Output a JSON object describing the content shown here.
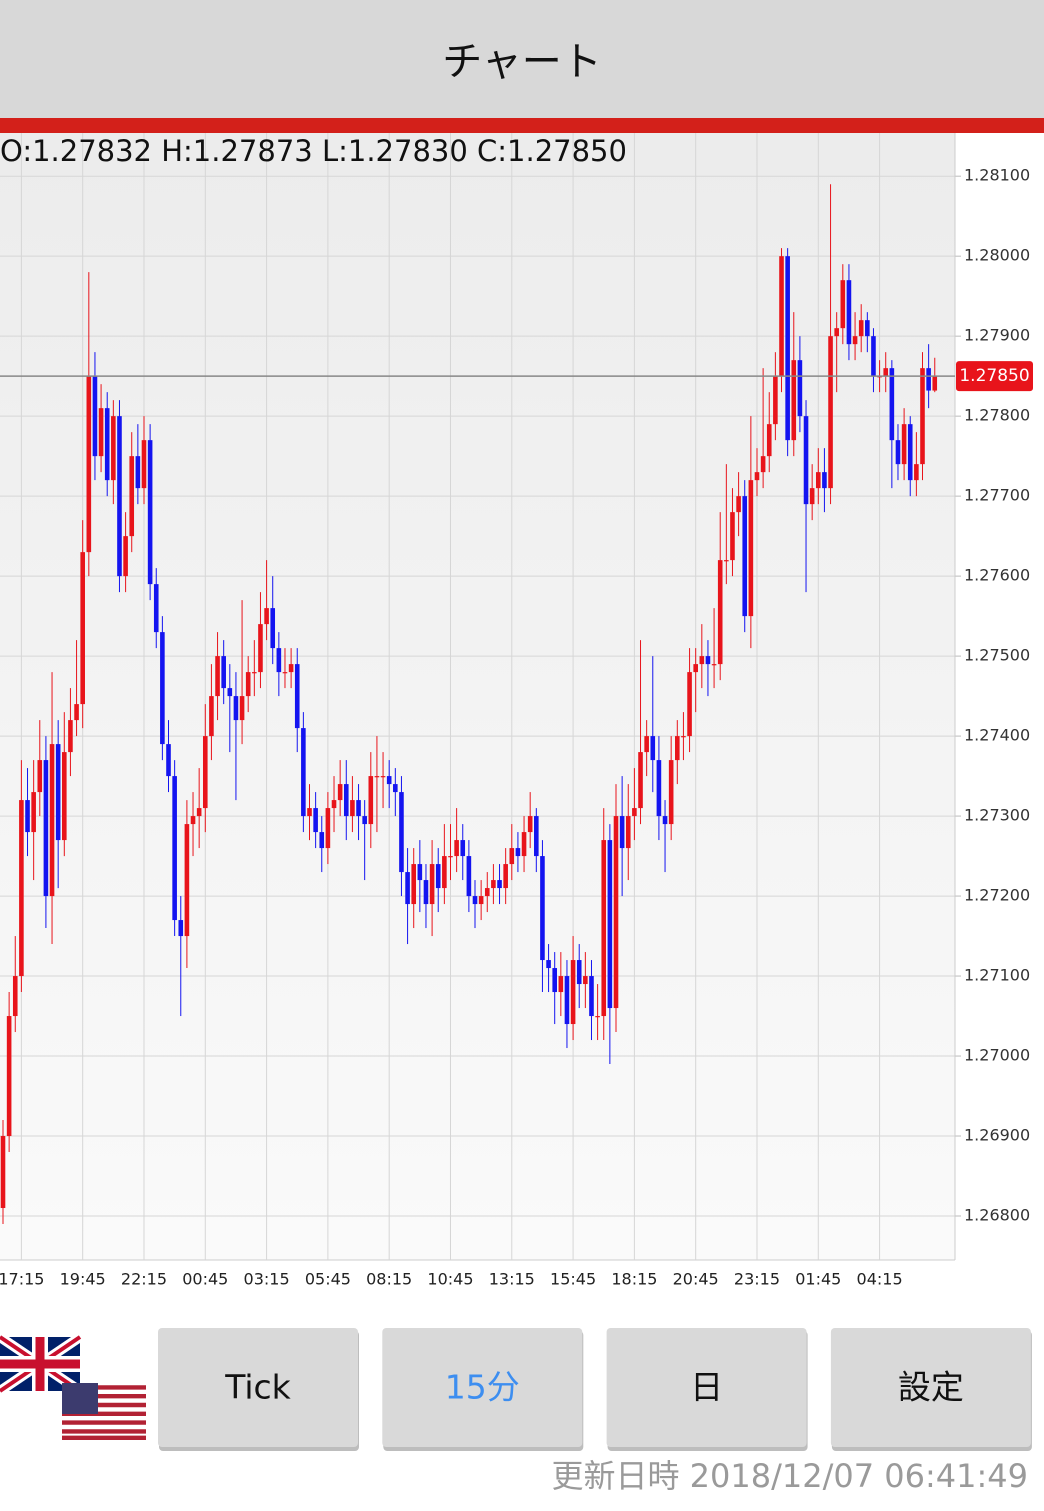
{
  "header": {
    "title": "チャート"
  },
  "chart_data": {
    "type": "candlestick",
    "ohlc_text": "O:1.27832 H:1.27873 L:1.27830 C:1.27850",
    "categories": [
      null,
      null,
      null,
      "17:15",
      null,
      null,
      null,
      null,
      null,
      null,
      null,
      null,
      null,
      "19:45",
      null,
      null,
      null,
      null,
      null,
      null,
      null,
      null,
      null,
      "22:15",
      null,
      null,
      null,
      null,
      null,
      null,
      null,
      null,
      null,
      "00:45",
      null,
      null,
      null,
      null,
      null,
      null,
      null,
      null,
      null,
      "03:15",
      null,
      null,
      null,
      null,
      null,
      null,
      null,
      null,
      null,
      "05:45",
      null,
      null,
      null,
      null,
      null,
      null,
      null,
      null,
      null,
      "08:15",
      null,
      null,
      null,
      null,
      null,
      null,
      null,
      null,
      null,
      "10:45",
      null,
      null,
      null,
      null,
      null,
      null,
      null,
      null,
      null,
      "13:15",
      null,
      null,
      null,
      null,
      null,
      null,
      null,
      null,
      null,
      "15:45",
      null,
      null,
      null,
      null,
      null,
      null,
      null,
      null,
      null,
      "18:15",
      null,
      null,
      null,
      null,
      null,
      null,
      null,
      null,
      null,
      "20:45",
      null,
      null,
      null,
      null,
      null,
      null,
      null,
      null,
      null,
      "23:15",
      null,
      null,
      null,
      null,
      null,
      null,
      null,
      null,
      null,
      "01:45",
      null,
      null,
      null,
      null,
      null,
      null,
      null,
      null,
      null,
      "04:15",
      null,
      null,
      null,
      null,
      null,
      null,
      null,
      null,
      null
    ],
    "open": [
      1.2681,
      1.269,
      1.2705,
      1.271,
      1.2732,
      1.2728,
      1.2733,
      1.2737,
      1.272,
      1.2739,
      1.2727,
      1.2738,
      1.2742,
      1.2744,
      1.2763,
      1.2785,
      1.2775,
      1.2781,
      1.2772,
      1.278,
      1.276,
      1.2765,
      1.2775,
      1.2771,
      1.2777,
      1.2759,
      1.2753,
      1.2739,
      1.2735,
      1.2717,
      1.2715,
      1.2729,
      1.273,
      1.2731,
      1.274,
      1.2745,
      1.275,
      1.2746,
      1.2745,
      1.2742,
      1.2745,
      1.2748,
      1.2748,
      1.2754,
      1.2756,
      1.2751,
      1.2748,
      1.2748,
      1.2749,
      1.2741,
      1.273,
      1.2731,
      1.2728,
      1.2726,
      1.2731,
      1.2732,
      1.2734,
      1.273,
      1.2732,
      1.273,
      1.2729,
      1.2735,
      1.2735,
      1.2735,
      1.2734,
      1.2733,
      1.2723,
      1.2719,
      1.2724,
      1.2722,
      1.2719,
      1.2724,
      1.2721,
      1.2725,
      1.2725,
      1.2727,
      1.2725,
      1.272,
      1.2719,
      1.272,
      1.2721,
      1.2722,
      1.2721,
      1.2724,
      1.2726,
      1.2725,
      1.2728,
      1.273,
      1.2725,
      1.2712,
      1.2711,
      1.2708,
      1.271,
      1.2704,
      1.2712,
      1.2709,
      1.271,
      1.2705,
      1.2705,
      1.2727,
      1.2706,
      1.273,
      1.2726,
      1.273,
      1.2731,
      1.2738,
      1.274,
      1.2737,
      1.273,
      1.2729,
      1.2737,
      1.274,
      1.274,
      1.2748,
      1.2749,
      1.275,
      1.2749,
      1.2749,
      1.2762,
      1.2762,
      1.2768,
      1.277,
      1.2755,
      1.2772,
      1.2773,
      1.2775,
      1.2779,
      1.2785,
      1.28,
      1.2777,
      1.2787,
      1.278,
      1.2769,
      1.2771,
      1.2773,
      1.2771,
      1.279,
      1.2791,
      1.2797,
      1.2789,
      1.279,
      1.2792,
      1.279,
      1.2785,
      1.2785,
      1.2786,
      1.2777,
      1.2774,
      1.2779,
      1.2772,
      1.2774,
      1.2786,
      1.27832
    ],
    "high": [
      1.2692,
      1.2708,
      1.2715,
      1.2737,
      1.2736,
      1.2737,
      1.2742,
      1.274,
      1.2748,
      1.2742,
      1.2743,
      1.2746,
      1.2752,
      1.2767,
      1.2798,
      1.2788,
      1.2784,
      1.2783,
      1.2782,
      1.2782,
      1.2768,
      1.2778,
      1.2779,
      1.278,
      1.2779,
      1.2761,
      1.2755,
      1.2742,
      1.2737,
      1.272,
      1.2732,
      1.2733,
      1.2736,
      1.2744,
      1.2749,
      1.2753,
      1.2752,
      1.2749,
      1.2748,
      1.2757,
      1.275,
      1.2752,
      1.2758,
      1.2762,
      1.276,
      1.2753,
      1.2751,
      1.2751,
      1.2751,
      1.2743,
      1.2734,
      1.2733,
      1.273,
      1.2733,
      1.2735,
      1.2737,
      1.2737,
      1.2735,
      1.2734,
      1.2732,
      1.2738,
      1.274,
      1.2738,
      1.2737,
      1.2736,
      1.2735,
      1.2726,
      1.2726,
      1.2727,
      1.2724,
      1.2727,
      1.2726,
      1.2729,
      1.2729,
      1.2731,
      1.2729,
      1.2727,
      1.2722,
      1.2722,
      1.2723,
      1.2724,
      1.2724,
      1.2726,
      1.2729,
      1.2728,
      1.273,
      1.2733,
      1.2731,
      1.2727,
      1.2714,
      1.2713,
      1.2713,
      1.2712,
      1.2715,
      1.2714,
      1.2713,
      1.2712,
      1.2709,
      1.2731,
      1.2729,
      1.2734,
      1.2735,
      1.2734,
      1.2736,
      1.2752,
      1.2742,
      1.275,
      1.274,
      1.2732,
      1.274,
      1.2742,
      1.2743,
      1.2751,
      1.2751,
      1.2754,
      1.2752,
      1.2756,
      1.2768,
      1.2774,
      1.2771,
      1.2773,
      1.2772,
      1.278,
      1.2776,
      1.2786,
      1.2783,
      1.2788,
      1.2801,
      1.2801,
      1.2793,
      1.279,
      1.2782,
      1.2774,
      1.2776,
      1.2776,
      1.2809,
      1.2793,
      1.2799,
      1.2799,
      1.2793,
      1.2794,
      1.2793,
      1.2791,
      1.2787,
      1.2788,
      1.2787,
      1.2779,
      1.2781,
      1.278,
      1.2778,
      1.2788,
      1.2789,
      1.27873
    ],
    "low": [
      1.2679,
      1.2688,
      1.2703,
      1.2708,
      1.2725,
      1.2722,
      1.273,
      1.2716,
      1.2714,
      1.2721,
      1.2725,
      1.2735,
      1.274,
      1.2741,
      1.276,
      1.2772,
      1.2773,
      1.277,
      1.2769,
      1.2758,
      1.2758,
      1.2763,
      1.2769,
      1.2769,
      1.2757,
      1.2751,
      1.2737,
      1.2733,
      1.2715,
      1.2705,
      1.2711,
      1.2725,
      1.2726,
      1.2728,
      1.2737,
      1.2742,
      1.2744,
      1.2738,
      1.2732,
      1.2739,
      1.2743,
      1.2745,
      1.2746,
      1.2752,
      1.2749,
      1.2745,
      1.2746,
      1.2746,
      1.2738,
      1.2728,
      1.2727,
      1.2726,
      1.2723,
      1.2724,
      1.2728,
      1.273,
      1.2727,
      1.2728,
      1.2727,
      1.2722,
      1.2726,
      1.2728,
      1.2731,
      1.2731,
      1.273,
      1.272,
      1.2714,
      1.2716,
      1.2718,
      1.2716,
      1.2715,
      1.2718,
      1.2719,
      1.2722,
      1.2723,
      1.2722,
      1.2718,
      1.2716,
      1.2717,
      1.2718,
      1.2719,
      1.2719,
      1.2719,
      1.2722,
      1.2723,
      1.2723,
      1.2726,
      1.2723,
      1.2708,
      1.2708,
      1.2704,
      1.2705,
      1.2701,
      1.2702,
      1.2706,
      1.2706,
      1.2702,
      1.2702,
      1.2702,
      1.2699,
      1.2703,
      1.272,
      1.2722,
      1.2727,
      1.2729,
      1.2735,
      1.2733,
      1.2727,
      1.2723,
      1.2727,
      1.2734,
      1.2737,
      1.2738,
      1.2743,
      1.2746,
      1.2745,
      1.2746,
      1.2747,
      1.2759,
      1.276,
      1.2765,
      1.2753,
      1.2751,
      1.277,
      1.2771,
      1.2773,
      1.2777,
      1.2783,
      1.2775,
      1.2775,
      1.2778,
      1.2758,
      1.2767,
      1.2769,
      1.2768,
      1.2769,
      1.2783,
      1.2789,
      1.2787,
      1.2787,
      1.2788,
      1.2788,
      1.2783,
      1.2783,
      1.2783,
      1.2771,
      1.2772,
      1.2772,
      1.277,
      1.277,
      1.2772,
      1.2781,
      1.2783
    ],
    "close": [
      1.269,
      1.2705,
      1.271,
      1.2732,
      1.2728,
      1.2733,
      1.2737,
      1.272,
      1.2739,
      1.2727,
      1.2738,
      1.2742,
      1.2744,
      1.2763,
      1.2785,
      1.2775,
      1.2781,
      1.2772,
      1.278,
      1.276,
      1.2765,
      1.2775,
      1.2771,
      1.2777,
      1.2759,
      1.2753,
      1.2739,
      1.2735,
      1.2717,
      1.2715,
      1.2729,
      1.273,
      1.2731,
      1.274,
      1.2745,
      1.275,
      1.2746,
      1.2745,
      1.2742,
      1.2745,
      1.2748,
      1.2748,
      1.2754,
      1.2756,
      1.2751,
      1.2748,
      1.2748,
      1.2749,
      1.2741,
      1.273,
      1.2731,
      1.2728,
      1.2726,
      1.2731,
      1.2732,
      1.2734,
      1.273,
      1.2732,
      1.273,
      1.2729,
      1.2735,
      1.2735,
      1.2735,
      1.2734,
      1.2733,
      1.2723,
      1.2719,
      1.2724,
      1.2722,
      1.2719,
      1.2724,
      1.2721,
      1.2725,
      1.2725,
      1.2727,
      1.2725,
      1.272,
      1.2719,
      1.272,
      1.2721,
      1.2722,
      1.2721,
      1.2724,
      1.2726,
      1.2725,
      1.2728,
      1.273,
      1.2725,
      1.2712,
      1.2711,
      1.2708,
      1.271,
      1.2704,
      1.2712,
      1.2709,
      1.271,
      1.2705,
      1.2705,
      1.2727,
      1.2706,
      1.273,
      1.2726,
      1.273,
      1.2731,
      1.2738,
      1.274,
      1.2737,
      1.273,
      1.2729,
      1.2737,
      1.274,
      1.274,
      1.2748,
      1.2749,
      1.275,
      1.2749,
      1.2749,
      1.2762,
      1.2762,
      1.2768,
      1.277,
      1.2755,
      1.2772,
      1.2773,
      1.2775,
      1.2779,
      1.2785,
      1.28,
      1.2777,
      1.2787,
      1.278,
      1.2769,
      1.2771,
      1.2773,
      1.2771,
      1.279,
      1.2791,
      1.2797,
      1.2789,
      1.279,
      1.2792,
      1.279,
      1.2785,
      1.2785,
      1.2786,
      1.2777,
      1.2774,
      1.2779,
      1.2772,
      1.2774,
      1.2786,
      1.27832,
      1.2785
    ],
    "up_color": "#e8141b",
    "down_color": "#1414f0",
    "ylim": [
      1.26745,
      1.28154
    ],
    "yticks": [
      {
        "value": 1.281,
        "label": "1.28100"
      },
      {
        "value": 1.28,
        "label": "1.28000"
      },
      {
        "value": 1.279,
        "label": "1.27900"
      },
      {
        "value": 1.278,
        "label": "1.27800"
      },
      {
        "value": 1.277,
        "label": "1.27700"
      },
      {
        "value": 1.276,
        "label": "1.27600"
      },
      {
        "value": 1.275,
        "label": "1.27500"
      },
      {
        "value": 1.274,
        "label": "1.27400"
      },
      {
        "value": 1.273,
        "label": "1.27300"
      },
      {
        "value": 1.272,
        "label": "1.27200"
      },
      {
        "value": 1.271,
        "label": "1.27100"
      },
      {
        "value": 1.27,
        "label": "1.27000"
      },
      {
        "value": 1.269,
        "label": "1.26900"
      },
      {
        "value": 1.268,
        "label": "1.26800"
      }
    ],
    "current_price": {
      "value": 1.2785,
      "label": "1.27850"
    },
    "grid": true
  },
  "buttons": [
    "Tick",
    "15分",
    "日",
    "設定"
  ],
  "footer": {
    "updated": "更新日時 2018/12/07 06:41:49"
  }
}
